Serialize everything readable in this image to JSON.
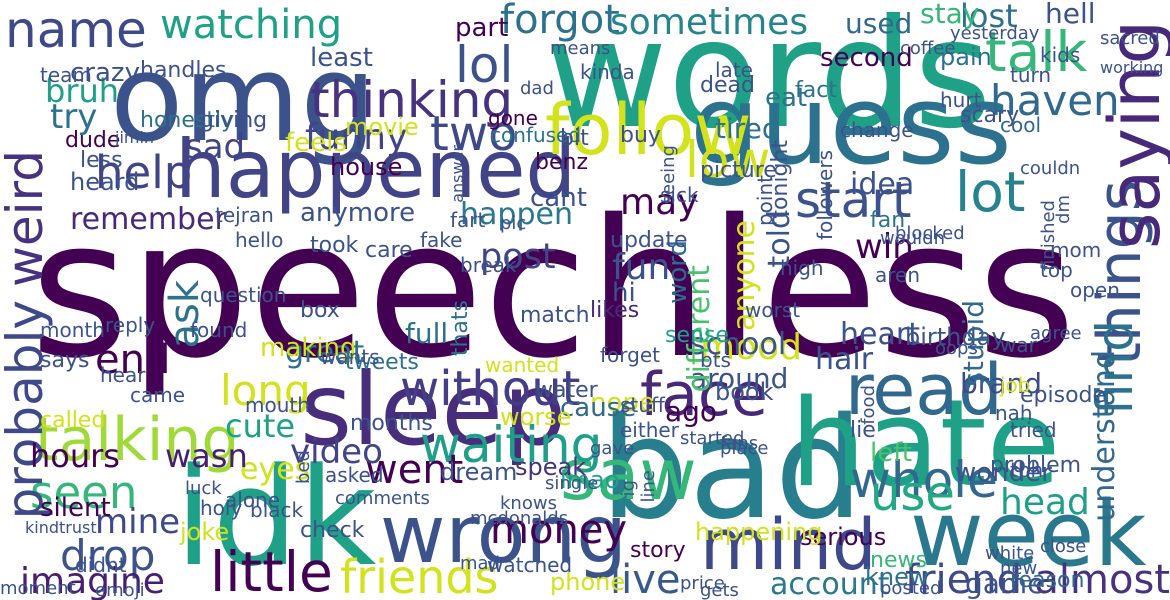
{
  "palette": {
    "background": "#ffffff",
    "c1": "#440154",
    "c2": "#46327e",
    "c3": "#365c8d",
    "c4": "#277f8e",
    "c5": "#1fa187",
    "c6": "#4ac16d",
    "c7": "#a0da39",
    "c8": "#fde725"
  },
  "words": [
    {
      "text": "speechless",
      "color": "#440154"
    },
    {
      "text": "words",
      "color": "#1fa187"
    },
    {
      "text": "omg",
      "color": "#3b528b"
    },
    {
      "text": "bad",
      "color": "#277f8e"
    },
    {
      "text": "hate",
      "color": "#1fa187"
    },
    {
      "text": "idk",
      "color": "#1fa187"
    },
    {
      "text": "guess",
      "color": "#2c728e"
    },
    {
      "text": "sleep",
      "color": "#472d7b"
    },
    {
      "text": "happened",
      "color": "#414487"
    },
    {
      "text": "week",
      "color": "#2a788e"
    },
    {
      "text": "wrong",
      "color": "#3b528b"
    },
    {
      "text": "saw",
      "color": "#35b779"
    },
    {
      "text": "talking",
      "color": "#a0da39"
    },
    {
      "text": "follow",
      "color": "#d2e21b"
    },
    {
      "text": "mind",
      "color": "#3e4989"
    },
    {
      "text": "read",
      "color": "#31688e"
    },
    {
      "text": "face",
      "color": "#482878"
    },
    {
      "text": "friends",
      "color": "#d2e21b"
    },
    {
      "text": "little",
      "color": "#440154"
    },
    {
      "text": "things",
      "color": "#3b528b"
    },
    {
      "text": "saying",
      "color": "#482878"
    },
    {
      "text": "lol",
      "color": "#3b528b"
    },
    {
      "text": "talk",
      "color": "#35b779"
    },
    {
      "text": "lot",
      "color": "#26828e"
    },
    {
      "text": "watching",
      "color": "#1fa187"
    },
    {
      "text": "name",
      "color": "#3e4989"
    },
    {
      "text": "thinking",
      "color": "#46327e"
    },
    {
      "text": "start",
      "color": "#3b528b"
    },
    {
      "text": "whole",
      "color": "#31688e"
    },
    {
      "text": "waiting",
      "color": "#1f9e89"
    },
    {
      "text": "without",
      "color": "#433e85"
    },
    {
      "text": "seen",
      "color": "#35b779"
    },
    {
      "text": "probably",
      "color": "#3e4989"
    },
    {
      "text": "weird",
      "color": "#46327e"
    },
    {
      "text": "help",
      "color": "#414487"
    },
    {
      "text": "drop",
      "color": "#3b528b"
    },
    {
      "text": "imagine",
      "color": "#481f70"
    },
    {
      "text": "money",
      "color": "#440154"
    },
    {
      "text": "mood",
      "color": "#d2e21b"
    },
    {
      "text": "friend",
      "color": "#3e4989"
    },
    {
      "text": "live",
      "color": "#38598c"
    },
    {
      "text": "almost",
      "color": "#46327e"
    },
    {
      "text": "account",
      "color": "#2a788e"
    },
    {
      "text": "hair",
      "color": "#3b528b"
    },
    {
      "text": "went",
      "color": "#440154"
    },
    {
      "text": "use",
      "color": "#22a884"
    },
    {
      "text": "long",
      "color": "#d2e21b"
    },
    {
      "text": "find",
      "color": "#2c728e"
    },
    {
      "text": "low",
      "color": "#d2e21b"
    },
    {
      "text": "forgot",
      "color": "#2c728e"
    },
    {
      "text": "sometimes",
      "color": "#25858e"
    },
    {
      "text": "two",
      "color": "#3e4989"
    },
    {
      "text": "may",
      "color": "#440154"
    },
    {
      "text": "haven",
      "color": "#31688e"
    },
    {
      "text": "funny",
      "color": "#414487"
    },
    {
      "text": "ask",
      "color": "#2c728e"
    },
    {
      "text": "end",
      "color": "#440154"
    },
    {
      "text": "remember",
      "color": "#482878"
    },
    {
      "text": "post",
      "color": "#414487"
    },
    {
      "text": "school",
      "color": "#3b528b"
    },
    {
      "text": "hours",
      "color": "#440154"
    },
    {
      "text": "video",
      "color": "#414487"
    },
    {
      "text": "mine",
      "color": "#3e4989"
    },
    {
      "text": "cute",
      "color": "#1fa187"
    },
    {
      "text": "eyes",
      "color": "#d2e21b"
    },
    {
      "text": "understand",
      "color": "#31688e"
    },
    {
      "text": "head",
      "color": "#1f9e89"
    },
    {
      "text": "lost",
      "color": "#2c728e"
    },
    {
      "text": "sad",
      "color": "#414487"
    },
    {
      "text": "bruh",
      "color": "#1f9e89"
    },
    {
      "text": "try",
      "color": "#2c728e"
    },
    {
      "text": "crazy",
      "color": "#3b528b"
    },
    {
      "text": "win",
      "color": "#440154"
    },
    {
      "text": "ago",
      "color": "#440154"
    },
    {
      "text": "wasn",
      "color": "#481f70"
    },
    {
      "text": "great",
      "color": "#2c728e"
    },
    {
      "text": "happen",
      "color": "#2a788e"
    },
    {
      "text": "tired",
      "color": "#2c728e"
    },
    {
      "text": "heart",
      "color": "#3b528b"
    },
    {
      "text": "brand",
      "color": "#3e4989"
    },
    {
      "text": "game",
      "color": "#3b528b"
    },
    {
      "text": "stay",
      "color": "#35b779"
    },
    {
      "text": "hell",
      "color": "#3b528b"
    },
    {
      "text": "used",
      "color": "#31688e"
    },
    {
      "text": "second",
      "color": "#440154"
    },
    {
      "text": "eat",
      "color": "#2c728e"
    },
    {
      "text": "least",
      "color": "#3b528b"
    },
    {
      "text": "feels",
      "color": "#d2e21b"
    },
    {
      "text": "part",
      "color": "#440154"
    },
    {
      "text": "movie",
      "color": "#d2e21b"
    },
    {
      "text": "house",
      "color": "#440154"
    },
    {
      "text": "anymore",
      "color": "#3b528b"
    },
    {
      "text": "cant",
      "color": "#3b528b"
    },
    {
      "text": "nope",
      "color": "#d2e21b"
    },
    {
      "text": "cause",
      "color": "#31688e"
    },
    {
      "text": "worse",
      "color": "#d2e21b"
    },
    {
      "text": "joke",
      "color": "#d2e21b"
    },
    {
      "text": "phone",
      "color": "#d2e21b"
    },
    {
      "text": "dream",
      "color": "#3b528b"
    },
    {
      "text": "speak",
      "color": "#46327e"
    },
    {
      "text": "lmao",
      "color": "#1f9e89"
    },
    {
      "text": "silent",
      "color": "#440154"
    },
    {
      "text": "around",
      "color": "#3b528b"
    },
    {
      "text": "serious",
      "color": "#440154"
    },
    {
      "text": "book",
      "color": "#3b528b"
    },
    {
      "text": "story",
      "color": "#440154"
    },
    {
      "text": "knew",
      "color": "#2c728e"
    },
    {
      "text": "left",
      "color": "#4ac16d"
    },
    {
      "text": "birthday",
      "color": "#3b528b"
    },
    {
      "text": "stupid",
      "color": "#31688e"
    },
    {
      "text": "wonder",
      "color": "#3b528b"
    },
    {
      "text": "reason",
      "color": "#31688e"
    },
    {
      "text": "new",
      "color": "#3b528b"
    },
    {
      "text": "kids",
      "color": "#3b528b"
    },
    {
      "text": "news",
      "color": "#35b779"
    },
    {
      "text": "idea",
      "color": "#3b528b"
    },
    {
      "text": "anyone",
      "color": "#d2e21b"
    },
    {
      "text": "told",
      "color": "#3b528b"
    },
    {
      "text": "word",
      "color": "#31688e"
    },
    {
      "text": "tonight",
      "color": "#3b528b"
    },
    {
      "text": "different",
      "color": "#4ac16d"
    },
    {
      "text": "fun",
      "color": "#3b528b"
    },
    {
      "text": "hi",
      "color": "#3b528b"
    },
    {
      "text": "likes",
      "color": "#482878"
    },
    {
      "text": "full",
      "color": "#2c728e"
    },
    {
      "text": "thats",
      "color": "#2c728e"
    },
    {
      "text": "making",
      "color": "#d2e21b"
    },
    {
      "text": "called",
      "color": "#d2e21b"
    },
    {
      "text": "heard",
      "color": "#3b528b"
    },
    {
      "text": "honestly",
      "color": "#2c728e"
    },
    {
      "text": "dude",
      "color": "#440154"
    },
    {
      "text": "less",
      "color": "#3b528b"
    },
    {
      "text": "giving",
      "color": "#3b528b"
    },
    {
      "text": "handles",
      "color": "#3b528b"
    },
    {
      "text": "team",
      "color": "#3b528b"
    },
    {
      "text": "confused",
      "color": "#2c728e"
    },
    {
      "text": "gone",
      "color": "#440154"
    },
    {
      "text": "benz",
      "color": "#440154"
    },
    {
      "text": "bit",
      "color": "#3b528b"
    },
    {
      "text": "buy",
      "color": "#3b528b"
    },
    {
      "text": "fact",
      "color": "#2c728e"
    },
    {
      "text": "dead",
      "color": "#3b528b"
    },
    {
      "text": "late",
      "color": "#3b528b"
    },
    {
      "text": "pain",
      "color": "#2c728e"
    },
    {
      "text": "cool",
      "color": "#31688e"
    },
    {
      "text": "hurt",
      "color": "#3b528b"
    },
    {
      "text": "turn",
      "color": "#3b528b"
    },
    {
      "text": "scary",
      "color": "#3b528b"
    },
    {
      "text": "dad",
      "color": "#3b528b"
    },
    {
      "text": "means",
      "color": "#3b528b"
    },
    {
      "text": "yesterday",
      "color": "#3b528b"
    },
    {
      "text": "fan",
      "color": "#2c728e"
    },
    {
      "text": "kinda",
      "color": "#3b528b"
    },
    {
      "text": "water",
      "color": "#3b528b"
    },
    {
      "text": "aren",
      "color": "#3b528b"
    },
    {
      "text": "sense",
      "color": "#1fa187"
    },
    {
      "text": "box",
      "color": "#3b528b"
    },
    {
      "text": "fart",
      "color": "#3b528b"
    },
    {
      "text": "pic",
      "color": "#3b528b"
    },
    {
      "text": "break",
      "color": "#3b528b"
    },
    {
      "text": "took",
      "color": "#3b528b"
    },
    {
      "text": "care",
      "color": "#3b528b"
    },
    {
      "text": "fake",
      "color": "#3b528b"
    },
    {
      "text": "wanted",
      "color": "#d2e21b"
    },
    {
      "text": "months",
      "color": "#3b528b"
    },
    {
      "text": "tweets",
      "color": "#2c728e"
    },
    {
      "text": "wants",
      "color": "#3b528b"
    },
    {
      "text": "mouth",
      "color": "#3b528b"
    },
    {
      "text": "came",
      "color": "#3b528b"
    },
    {
      "text": "hear",
      "color": "#3b528b"
    },
    {
      "text": "says",
      "color": "#3b528b"
    },
    {
      "text": "month",
      "color": "#3b528b"
    },
    {
      "text": "reply",
      "color": "#3b528b"
    },
    {
      "text": "found",
      "color": "#3b528b"
    },
    {
      "text": "question",
      "color": "#3b528b"
    },
    {
      "text": "black",
      "color": "#3b528b"
    },
    {
      "text": "luck",
      "color": "#3b528b"
    },
    {
      "text": "holy",
      "color": "#3b528b"
    },
    {
      "text": "kindtrust",
      "color": "#3b528b"
    },
    {
      "text": "didnt",
      "color": "#3b528b"
    },
    {
      "text": "moment",
      "color": "#3b528b"
    },
    {
      "text": "emoji",
      "color": "#3b528b"
    },
    {
      "text": "alone",
      "color": "#3b528b"
    },
    {
      "text": "bed",
      "color": "#3b528b"
    },
    {
      "text": "asked",
      "color": "#3b528b"
    },
    {
      "text": "comments",
      "color": "#3b528b"
    },
    {
      "text": "check",
      "color": "#3b528b"
    },
    {
      "text": "mad",
      "color": "#3b528b"
    },
    {
      "text": "watched",
      "color": "#3b528b"
    },
    {
      "text": "price",
      "color": "#3b528b"
    },
    {
      "text": "gets",
      "color": "#3b528b"
    },
    {
      "text": "happening",
      "color": "#d2e21b"
    },
    {
      "text": "white",
      "color": "#3b528b"
    },
    {
      "text": "posted",
      "color": "#3b528b"
    },
    {
      "text": "close",
      "color": "#3b528b"
    },
    {
      "text": "tbh",
      "color": "#3b528b"
    },
    {
      "text": "problem",
      "color": "#3b528b"
    },
    {
      "text": "tried",
      "color": "#3b528b"
    },
    {
      "text": "nah",
      "color": "#3b528b"
    },
    {
      "text": "episode",
      "color": "#3b528b"
    },
    {
      "text": "agree",
      "color": "#3b528b"
    },
    {
      "text": "job",
      "color": "#d2e21b"
    },
    {
      "text": "war",
      "color": "#3b528b"
    },
    {
      "text": "oops",
      "color": "#3b528b"
    },
    {
      "text": "top",
      "color": "#3b528b"
    },
    {
      "text": "mom",
      "color": "#3b528b"
    },
    {
      "text": "open",
      "color": "#3b528b"
    },
    {
      "text": "lie",
      "color": "#3b528b"
    },
    {
      "text": "either",
      "color": "#3b528b"
    },
    {
      "text": "stuff",
      "color": "#3b528b"
    },
    {
      "text": "forget",
      "color": "#3b528b"
    },
    {
      "text": "started",
      "color": "#3b528b"
    },
    {
      "text": "fans",
      "color": "#3b528b"
    },
    {
      "text": "bts",
      "color": "#3b528b"
    },
    {
      "text": "worst",
      "color": "#3b528b"
    },
    {
      "text": "high",
      "color": "#3b528b"
    },
    {
      "text": "sick",
      "color": "#3b528b"
    },
    {
      "text": "blocked",
      "color": "#3b528b"
    },
    {
      "text": "finished",
      "color": "#3b528b"
    },
    {
      "text": "dm",
      "color": "#3b528b"
    },
    {
      "text": "food",
      "color": "#3b528b"
    },
    {
      "text": "update",
      "color": "#3b528b"
    },
    {
      "text": "match",
      "color": "#3b528b"
    },
    {
      "text": "picture",
      "color": "#3b528b"
    },
    {
      "text": "followers",
      "color": "#3b528b"
    },
    {
      "text": "point",
      "color": "#3b528b"
    },
    {
      "text": "seeing",
      "color": "#3b528b"
    },
    {
      "text": "answer",
      "color": "#3b528b"
    },
    {
      "text": "change",
      "color": "#3b528b"
    },
    {
      "text": "place",
      "color": "#3b528b"
    },
    {
      "text": "sacred",
      "color": "#3b528b"
    },
    {
      "text": "working",
      "color": "#3b528b"
    },
    {
      "text": "mcdonalds",
      "color": "#3b528b"
    },
    {
      "text": "single",
      "color": "#3b528b"
    },
    {
      "text": "knows",
      "color": "#3b528b"
    },
    {
      "text": "couldn",
      "color": "#3b528b"
    },
    {
      "text": "wouldn",
      "color": "#3b528b"
    },
    {
      "text": "ig",
      "color": "#3b528b"
    },
    {
      "text": "line",
      "color": "#3b528b"
    },
    {
      "text": "gave",
      "color": "#3b528b"
    },
    {
      "text": "hello",
      "color": "#3b528b"
    },
    {
      "text": "coffee",
      "color": "#3b528b"
    },
    {
      "text": "jimin",
      "color": "#3b528b"
    },
    {
      "text": "tejran",
      "color": "#3b528b"
    },
    {
      "text": "covid",
      "color": "#3b528b"
    },
    {
      "text": "music",
      "color": "#3b528b"
    },
    {
      "text": "class",
      "color": "#3b528b"
    },
    {
      "text": "early",
      "color": "#3b528b"
    },
    {
      "text": "silence",
      "color": "#3b528b"
    },
    {
      "text": "sent",
      "color": "#3b528b"
    },
    {
      "text": "hot",
      "color": "#3b528b"
    },
    {
      "text": "body",
      "color": "#3b528b"
    },
    {
      "text": "woman",
      "color": "#3b528b"
    },
    {
      "text": "tf",
      "color": "#3b528b"
    }
  ]
}
